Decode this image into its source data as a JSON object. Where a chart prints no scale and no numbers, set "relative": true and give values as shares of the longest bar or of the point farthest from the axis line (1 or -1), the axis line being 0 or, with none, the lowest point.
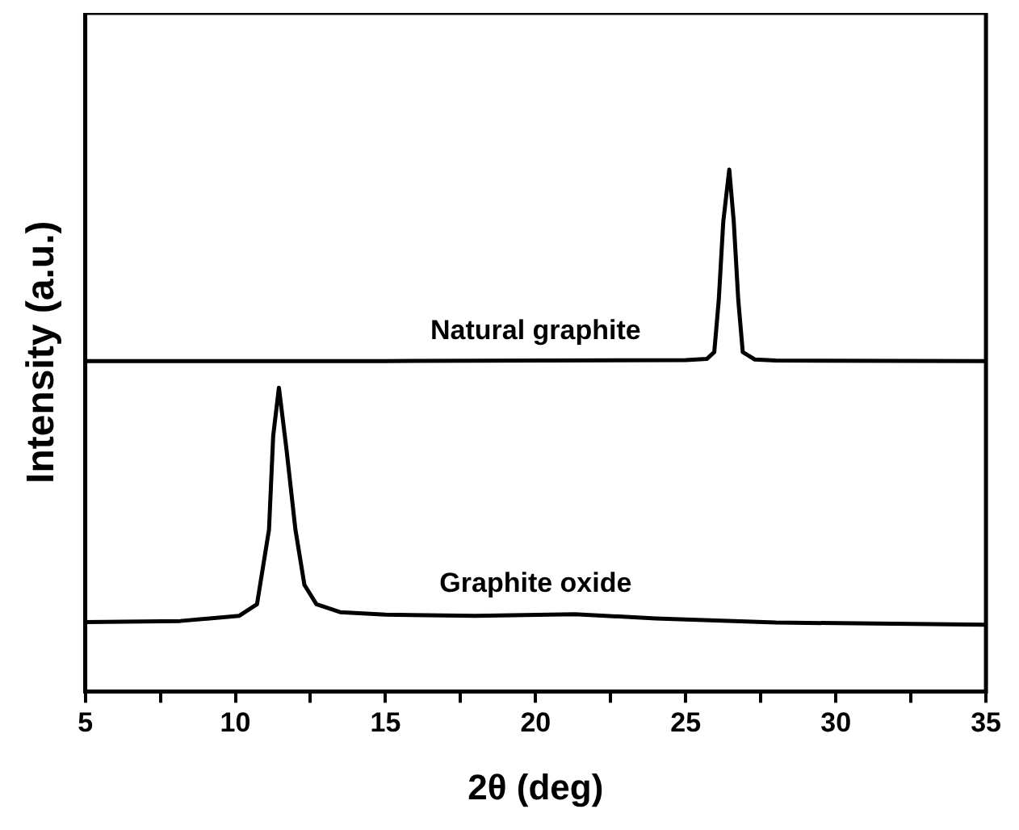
{
  "chart_data": {
    "type": "line",
    "relative": true,
    "xlabel": "2θ (deg)",
    "ylabel": "Intensity (a.u.)",
    "xlim": [
      5,
      35
    ],
    "xticks": [
      5,
      {
        "value": 7.5,
        "label": null
      },
      10,
      {
        "value": 12.5,
        "label": null
      },
      15,
      {
        "value": 17.5,
        "label": null
      },
      20,
      {
        "value": 22.5,
        "label": null
      },
      25,
      {
        "value": 27.5,
        "label": null
      },
      30,
      {
        "value": 32.5,
        "label": null
      },
      35
    ],
    "grid": false,
    "legend": false,
    "marker": "none",
    "line_style": "solid",
    "series": [
      {
        "name": "Natural graphite",
        "color": "#000000",
        "x": [
          5,
          15,
          25,
          25.7,
          25.95,
          26.1,
          26.25,
          26.45,
          26.6,
          26.75,
          26.9,
          27.3,
          28,
          35
        ],
        "values": [
          0.633,
          0.633,
          0.635,
          0.637,
          0.65,
          0.75,
          0.9,
          1.0,
          0.9,
          0.75,
          0.65,
          0.636,
          0.634,
          0.633
        ]
      },
      {
        "name": "Graphite oxide",
        "color": "#000000",
        "x": [
          5,
          8.16,
          10.13,
          10.72,
          11.12,
          11.26,
          11.45,
          11.71,
          12.0,
          12.3,
          12.7,
          13.49,
          15,
          18,
          21.3,
          24,
          28,
          35
        ],
        "values": [
          0.133,
          0.135,
          0.145,
          0.167,
          0.31,
          0.49,
          0.582,
          0.46,
          0.31,
          0.204,
          0.167,
          0.152,
          0.147,
          0.145,
          0.148,
          0.14,
          0.132,
          0.128
        ]
      }
    ]
  }
}
